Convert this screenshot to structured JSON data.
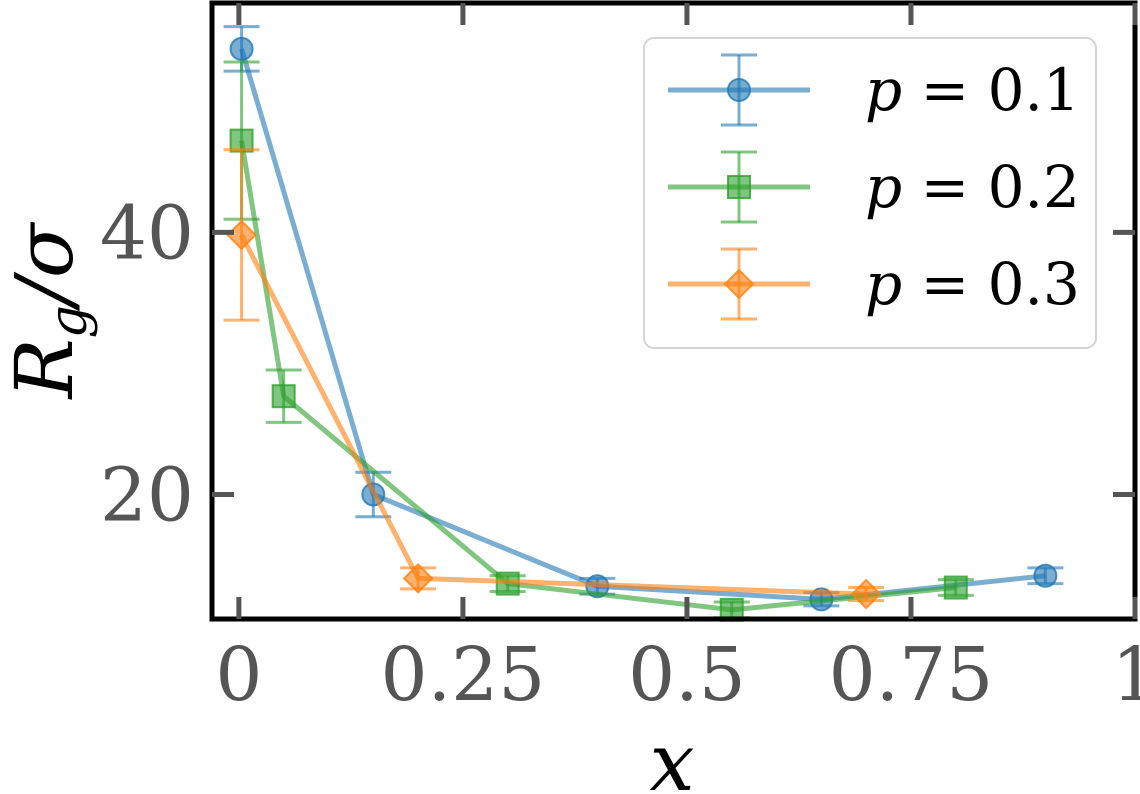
{
  "chart_data": {
    "type": "line",
    "xlabel": "x",
    "ylabel": "R_g/σ",
    "ylabel_parts": {
      "main": "R",
      "sub": "g",
      "rest": "/σ"
    },
    "xlim": [
      -0.03,
      1.0
    ],
    "ylim": [
      10.5,
      57.5
    ],
    "x_ticks": [
      0,
      0.25,
      0.5,
      0.75,
      1
    ],
    "x_tick_labels": [
      "0",
      "0.25",
      "0.5",
      "0.75",
      "1"
    ],
    "y_ticks": [
      20,
      40
    ],
    "y_tick_labels": [
      "20",
      "40"
    ],
    "grid": false,
    "legend_position": "top-right",
    "series": [
      {
        "name": "p = 0.1",
        "legend": {
          "prefix": "p",
          "rest": " = 0.1"
        },
        "color": "#1f77b4",
        "marker": "circle",
        "x": [
          0.003,
          0.15,
          0.4,
          0.65,
          0.9
        ],
        "y": [
          54.0,
          20.0,
          13.0,
          12.0,
          13.8
        ],
        "xerr": [
          0.0,
          0.0,
          0.0,
          0.0,
          0.0
        ],
        "yerr": [
          1.7,
          1.7,
          0.6,
          0.5,
          0.6
        ]
      },
      {
        "name": "p = 0.2",
        "legend": {
          "prefix": "p",
          "rest": " = 0.2"
        },
        "color": "#2ca02c",
        "marker": "square",
        "x": [
          0.003,
          0.05,
          0.3,
          0.55,
          0.8
        ],
        "y": [
          47.0,
          27.5,
          13.2,
          11.2,
          12.9
        ],
        "xerr": [
          0.0,
          0.0,
          0.0,
          0.0,
          0.0
        ],
        "yerr": [
          6.0,
          2.0,
          0.6,
          0.6,
          0.6
        ]
      },
      {
        "name": "p = 0.3",
        "legend": {
          "prefix": "p",
          "rest": " = 0.3"
        },
        "color": "#ff7f0e",
        "marker": "diamond",
        "x": [
          0.003,
          0.2,
          0.7
        ],
        "y": [
          39.8,
          13.6,
          12.4
        ],
        "xerr": [
          0.0,
          0.0,
          0.0
        ],
        "yerr": [
          6.5,
          0.8,
          0.5
        ]
      }
    ]
  }
}
